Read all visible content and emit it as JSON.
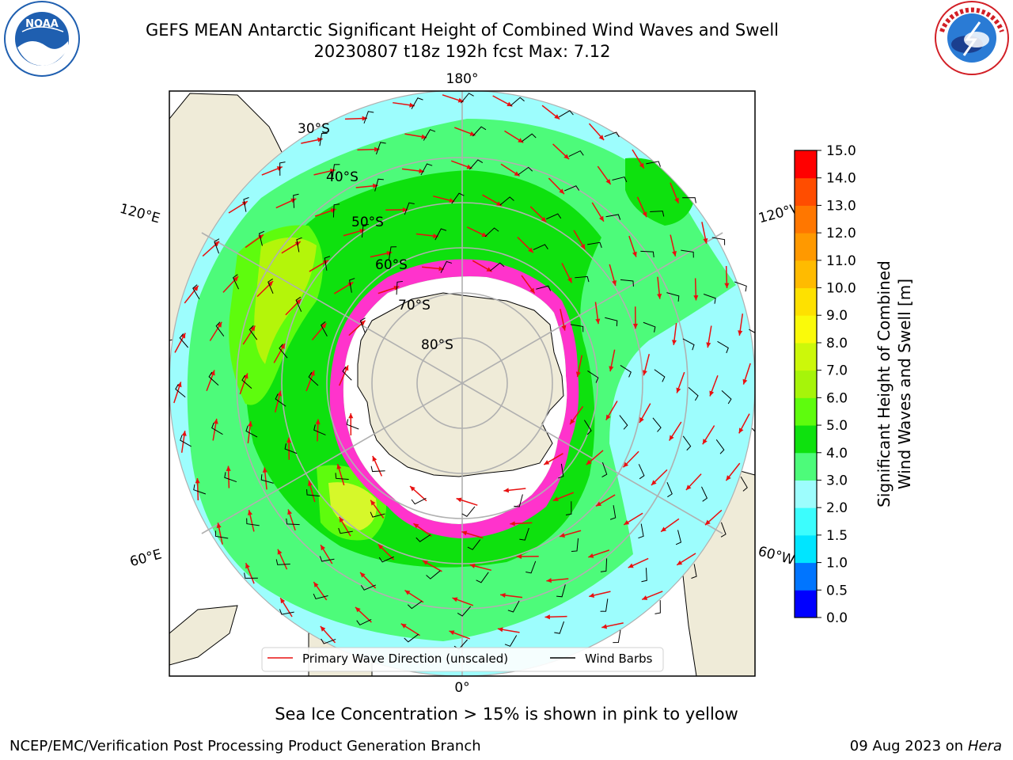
{
  "header": {
    "title_line1": "GEFS MEAN Antarctic Significant Height of Combined Wind Waves and Swell",
    "title_line2": "20230807 t18z 192h fcst   Max: 7.12"
  },
  "logos": {
    "noaa": {
      "text": "NOAA",
      "ring_text": "NATIONAL OCEANIC AND ATMOSPHERIC ADMINISTRATION · U.S. DEPARTMENT OF COMMERCE",
      "color": "#1f5fb0"
    },
    "nws": {
      "ring_text": "NATIONAL WEATHER SERVICE",
      "color": "#d21f26"
    }
  },
  "map": {
    "projection": "south polar stereographic",
    "longitude_labels": [
      "180°",
      "120°E",
      "120°W",
      "60°E",
      "60°W",
      "0°"
    ],
    "latitude_labels": [
      "30°S",
      "40°S",
      "50°S",
      "60°S",
      "70°S",
      "80°S"
    ],
    "colors": {
      "land": "#efebd8",
      "ocean_low": "#9dfdfd",
      "wave_3_4": "#4dfb7a",
      "wave_4_5": "#0ee10e",
      "wave_5_6": "#5efc0d",
      "wave_6_7": "#b4f50a",
      "wave_7_8": "#d6f82a",
      "sea_ice": "#ff33cc",
      "wave_arrow": "#e81010",
      "wind_barb": "#000000",
      "grid": "#b0b0b0"
    },
    "legend": {
      "wave_direction": "Primary Wave Direction (unscaled)",
      "wind_barbs": "Wind Barbs"
    }
  },
  "colorbar": {
    "label_line1": "Significant Height of Combined",
    "label_line2": "Wind Waves and Swell [m]",
    "ticks": [
      "0.0",
      "0.5",
      "1.0",
      "1.5",
      "2.0",
      "3.0",
      "4.0",
      "5.0",
      "6.0",
      "7.0",
      "8.0",
      "9.0",
      "10.0",
      "11.0",
      "12.0",
      "13.0",
      "14.0",
      "15.0"
    ],
    "colors": [
      "#0000ff",
      "#0075ff",
      "#00e5ff",
      "#3cfdfd",
      "#9dfdfd",
      "#4dfb7a",
      "#0ee10e",
      "#5efc0d",
      "#a6f40a",
      "#ccf80a",
      "#fafa0a",
      "#fee100",
      "#ffbb00",
      "#ff9900",
      "#ff7700",
      "#ff4d00",
      "#ff0000"
    ]
  },
  "footer": {
    "note": "Sea Ice Concentration > 15% is shown in pink to yellow",
    "left": "NCEP/EMC/Verification Post Processing Product Generation Branch",
    "right_date": "09 Aug 2023 on",
    "right_host": "Hera"
  }
}
